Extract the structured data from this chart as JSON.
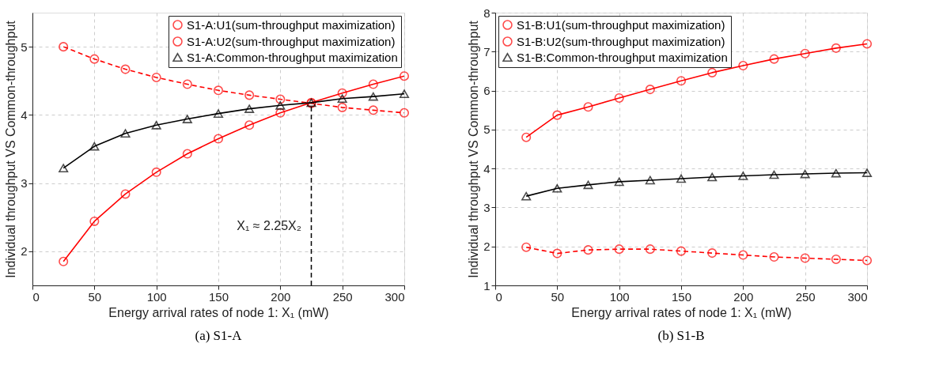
{
  "chart_data": [
    {
      "type": "line",
      "title": "(a) S1-A",
      "xlabel": "Energy arrival rates of node 1: X₁ (mW)",
      "ylabel": "Individual throughput VS Common-throughput",
      "x": [
        25,
        50,
        75,
        100,
        125,
        150,
        175,
        200,
        225,
        250,
        275,
        300
      ],
      "series": [
        {
          "name": "S1-A:U1(sum-throughput maximization)",
          "color": "#ff0000",
          "marker": "circle",
          "line_style": "solid",
          "values": [
            1.85,
            2.44,
            2.84,
            3.16,
            3.43,
            3.65,
            3.85,
            4.03,
            4.18,
            4.32,
            4.45,
            4.57
          ]
        },
        {
          "name": "S1-A:U2(sum-throughput maximization)",
          "color": "#ff0000",
          "marker": "circle",
          "line_style": "dashed",
          "values": [
            5.0,
            4.82,
            4.67,
            4.55,
            4.45,
            4.36,
            4.29,
            4.23,
            4.17,
            4.11,
            4.07,
            4.03
          ]
        },
        {
          "name": "S1-A:Common-throughput maximization",
          "color": "#000000",
          "marker": "triangle",
          "line_style": "solid",
          "values": [
            3.22,
            3.54,
            3.73,
            3.85,
            3.94,
            4.02,
            4.09,
            4.14,
            4.18,
            4.24,
            4.27,
            4.31
          ]
        }
      ],
      "xlim": [
        0,
        300
      ],
      "xticks": [
        0,
        50,
        100,
        150,
        200,
        250,
        300
      ],
      "ylim": [
        1.5,
        5.5
      ],
      "yticks": [
        2,
        3,
        4,
        5
      ],
      "ref_lines": [
        {
          "axis": "x",
          "value": 225,
          "color": "#000000",
          "line_style": "dashed"
        }
      ],
      "annotations": [
        "X₁ ≈ 2.25X₂"
      ],
      "grid": true,
      "legend": "top right"
    },
    {
      "type": "line",
      "title": "(b) S1-B",
      "xlabel": "Energy arrival rates of node 1: X₁ (mW)",
      "ylabel": "Individual throughput VS Common-throughput",
      "x": [
        25,
        50,
        75,
        100,
        125,
        150,
        175,
        200,
        225,
        250,
        275,
        300
      ],
      "series": [
        {
          "name": "S1-B:U1(sum-throughput maximization)",
          "color": "#ff0000",
          "marker": "circle",
          "line_style": "solid",
          "values": [
            4.8,
            5.37,
            5.58,
            5.81,
            6.03,
            6.25,
            6.46,
            6.64,
            6.81,
            6.95,
            7.09,
            7.2
          ]
        },
        {
          "name": "S1-B:U2(sum-throughput maximization)",
          "color": "#ff0000",
          "marker": "circle",
          "line_style": "dashed",
          "values": [
            1.98,
            1.82,
            1.91,
            1.93,
            1.93,
            1.88,
            1.83,
            1.78,
            1.73,
            1.7,
            1.67,
            1.64
          ]
        },
        {
          "name": "S1-B:Common-throughput maximization",
          "color": "#000000",
          "marker": "triangle",
          "line_style": "solid",
          "values": [
            3.29,
            3.49,
            3.58,
            3.66,
            3.7,
            3.74,
            3.78,
            3.81,
            3.84,
            3.86,
            3.88,
            3.89
          ]
        }
      ],
      "xlim": [
        0,
        300
      ],
      "xticks": [
        0,
        50,
        100,
        150,
        200,
        250,
        300
      ],
      "ylim": [
        1,
        8
      ],
      "yticks": [
        1,
        2,
        3,
        4,
        5,
        6,
        7,
        8
      ],
      "grid": true,
      "legend": "top left"
    }
  ]
}
